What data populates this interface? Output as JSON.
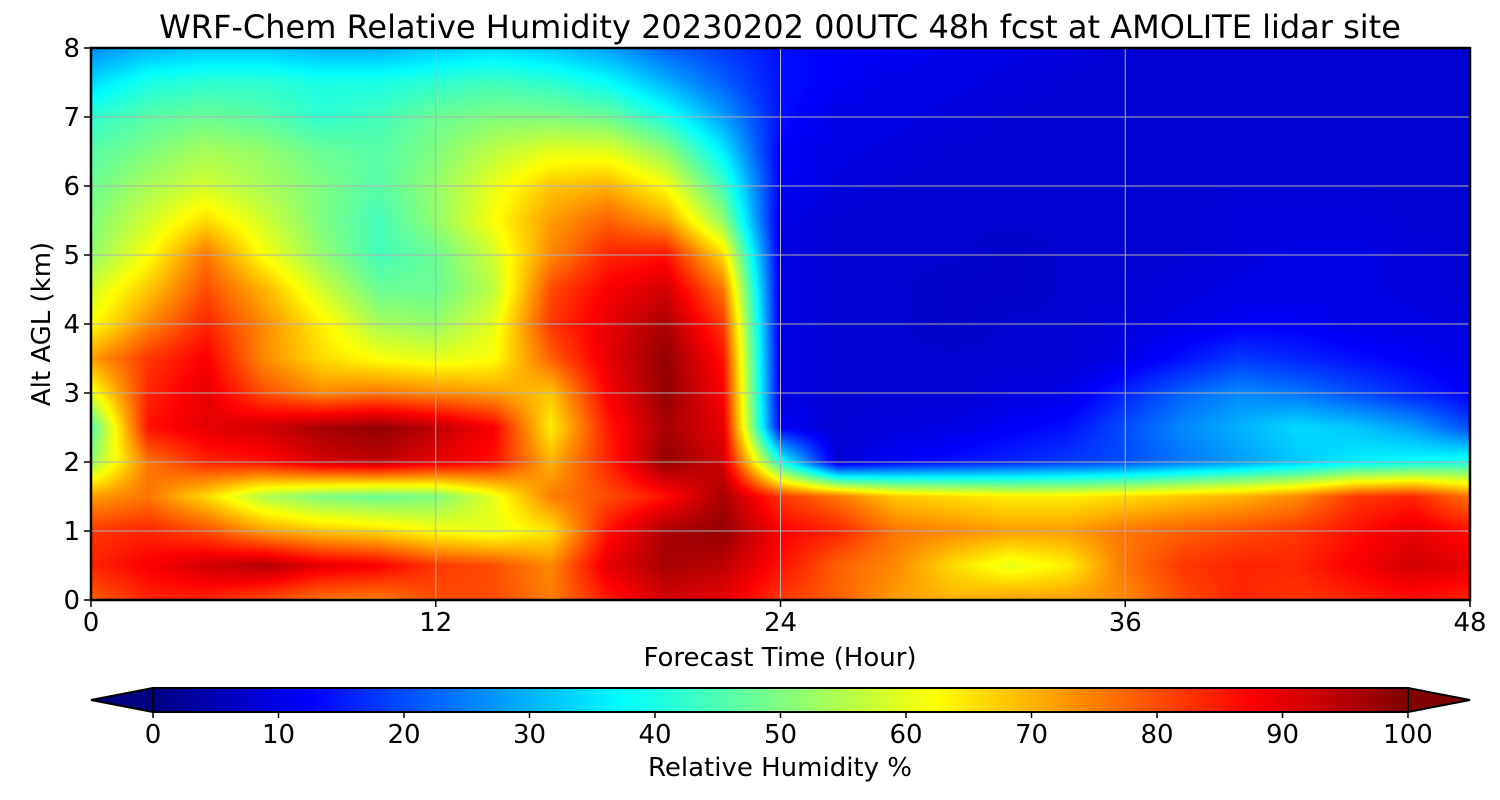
{
  "chart_data": {
    "type": "heatmap",
    "title": "WRF-Chem Relative Humidity 20230202 00UTC 48h fcst at AMOLITE lidar site",
    "xlabel": "Forecast Time (Hour)",
    "ylabel": "Alt AGL (km)",
    "xlim": [
      0,
      48
    ],
    "ylim": [
      0,
      8
    ],
    "xticks": [
      0,
      12,
      24,
      36,
      48
    ],
    "xtick_labels": [
      "0",
      "12",
      "24",
      "36",
      "48"
    ],
    "yticks": [
      0,
      1,
      2,
      3,
      4,
      5,
      6,
      7,
      8
    ],
    "ytick_labels": [
      "0",
      "1",
      "2",
      "3",
      "4",
      "5",
      "6",
      "7",
      "8"
    ],
    "grid": true,
    "colormap": "jet",
    "colorbar": {
      "label": "Relative Humidity %",
      "range": [
        0,
        100
      ],
      "ticks": [
        0,
        10,
        20,
        30,
        40,
        50,
        60,
        70,
        80,
        90,
        100
      ],
      "tick_labels": [
        "0",
        "10",
        "20",
        "30",
        "40",
        "50",
        "60",
        "70",
        "80",
        "90",
        "100"
      ],
      "extend": "both",
      "orientation": "horizontal",
      "placement": "bottom"
    },
    "x": [
      0,
      2,
      4,
      6,
      8,
      10,
      12,
      14,
      16,
      18,
      20,
      22,
      24,
      26,
      28,
      30,
      32,
      34,
      36,
      38,
      40,
      42,
      44,
      46,
      48
    ],
    "y": [
      0,
      0.5,
      1,
      1.5,
      2,
      2.5,
      3,
      3.5,
      4,
      4.5,
      5,
      5.5,
      6,
      6.5,
      7,
      7.5,
      8
    ],
    "z": [
      [
        78,
        84,
        84,
        80,
        76,
        75,
        80,
        80,
        75,
        85,
        92,
        90,
        82,
        78,
        72,
        70,
        72,
        72,
        74,
        80,
        84,
        82,
        84,
        86,
        84
      ],
      [
        84,
        88,
        92,
        95,
        90,
        88,
        82,
        80,
        74,
        90,
        96,
        94,
        86,
        78,
        74,
        66,
        60,
        64,
        76,
        82,
        84,
        84,
        88,
        92,
        90
      ],
      [
        82,
        84,
        80,
        72,
        68,
        66,
        62,
        60,
        65,
        86,
        96,
        98,
        88,
        84,
        76,
        74,
        72,
        72,
        76,
        78,
        80,
        82,
        86,
        90,
        86
      ],
      [
        72,
        76,
        66,
        55,
        50,
        48,
        50,
        60,
        75,
        80,
        86,
        96,
        82,
        76,
        68,
        66,
        64,
        64,
        66,
        68,
        70,
        74,
        82,
        84,
        76
      ],
      [
        52,
        76,
        84,
        86,
        92,
        94,
        90,
        86,
        70,
        84,
        98,
        92,
        40,
        8,
        12,
        14,
        16,
        18,
        20,
        24,
        28,
        32,
        36,
        38,
        40
      ],
      [
        45,
        86,
        90,
        92,
        96,
        98,
        94,
        88,
        64,
        85,
        96,
        90,
        12,
        8,
        9,
        10,
        12,
        14,
        20,
        26,
        30,
        34,
        32,
        28,
        20
      ],
      [
        60,
        84,
        90,
        80,
        74,
        76,
        74,
        72,
        68,
        88,
        98,
        88,
        10,
        8,
        8,
        8,
        9,
        10,
        16,
        22,
        26,
        24,
        20,
        16,
        12
      ],
      [
        72,
        82,
        88,
        74,
        66,
        62,
        60,
        62,
        78,
        90,
        98,
        86,
        10,
        8,
        8,
        8,
        8,
        8,
        10,
        14,
        18,
        16,
        14,
        12,
        10
      ],
      [
        62,
        74,
        84,
        74,
        64,
        54,
        52,
        60,
        82,
        90,
        96,
        82,
        10,
        8,
        8,
        7,
        8,
        8,
        9,
        10,
        12,
        12,
        10,
        10,
        9
      ],
      [
        58,
        68,
        80,
        70,
        58,
        48,
        48,
        56,
        80,
        88,
        92,
        76,
        10,
        8,
        8,
        7,
        7,
        8,
        8,
        9,
        10,
        10,
        10,
        9,
        8
      ],
      [
        52,
        62,
        76,
        62,
        52,
        44,
        48,
        58,
        74,
        84,
        86,
        66,
        10,
        8,
        8,
        8,
        7,
        8,
        8,
        8,
        9,
        10,
        10,
        9,
        8
      ],
      [
        50,
        58,
        66,
        58,
        50,
        44,
        52,
        62,
        72,
        78,
        72,
        52,
        10,
        8,
        8,
        8,
        8,
        8,
        8,
        8,
        9,
        9,
        9,
        8,
        8
      ],
      [
        48,
        54,
        58,
        54,
        50,
        46,
        52,
        60,
        68,
        70,
        62,
        44,
        12,
        9,
        8,
        8,
        8,
        8,
        8,
        8,
        8,
        8,
        8,
        8,
        8
      ],
      [
        46,
        50,
        54,
        52,
        48,
        46,
        50,
        56,
        60,
        60,
        52,
        36,
        12,
        10,
        9,
        8,
        8,
        8,
        8,
        8,
        8,
        8,
        8,
        8,
        8
      ],
      [
        42,
        46,
        48,
        46,
        42,
        44,
        48,
        50,
        50,
        48,
        40,
        28,
        14,
        10,
        10,
        9,
        8,
        8,
        8,
        8,
        8,
        8,
        8,
        8,
        8
      ],
      [
        34,
        40,
        42,
        42,
        40,
        40,
        42,
        44,
        42,
        38,
        30,
        22,
        14,
        12,
        10,
        10,
        9,
        8,
        8,
        8,
        8,
        8,
        8,
        8,
        8
      ],
      [
        26,
        30,
        32,
        32,
        30,
        30,
        32,
        34,
        32,
        28,
        22,
        18,
        14,
        12,
        12,
        10,
        10,
        9,
        8,
        8,
        8,
        8,
        8,
        8,
        8
      ]
    ]
  }
}
